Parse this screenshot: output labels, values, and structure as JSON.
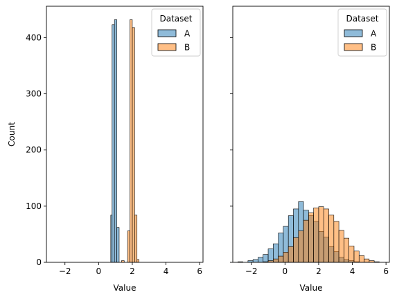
{
  "chart_data": [
    {
      "type": "bar",
      "panel": "left",
      "xlabel": "Value",
      "ylabel": "Count",
      "xlim": [
        -3.1,
        6.2
      ],
      "ylim": [
        0,
        456
      ],
      "xticks": [
        -2,
        0,
        2,
        4,
        6
      ],
      "yticks": [
        0,
        100,
        200,
        300,
        400
      ],
      "legend": {
        "title": "Dataset",
        "placement": "top-right",
        "entries": [
          "A",
          "B"
        ]
      },
      "series": [
        {
          "name": "A",
          "color": "#1f77b4",
          "bins": [
            [
              0.72,
              0.8,
              84
            ],
            [
              0.8,
              0.94,
              423
            ],
            [
              0.94,
              1.08,
              432
            ],
            [
              1.08,
              1.22,
              62
            ]
          ]
        },
        {
          "name": "B",
          "color": "#ff7f0e",
          "bins": [
            [
              1.36,
              1.52,
              3
            ],
            [
              1.72,
              1.86,
              56
            ],
            [
              1.86,
              2.0,
              432
            ],
            [
              2.0,
              2.14,
              418
            ],
            [
              2.14,
              2.28,
              84
            ],
            [
              2.28,
              2.4,
              5
            ]
          ]
        }
      ]
    },
    {
      "type": "bar",
      "panel": "right",
      "xlabel": "Value",
      "ylabel": "",
      "xlim": [
        -3.1,
        6.2
      ],
      "ylim": [
        0,
        456
      ],
      "xticks": [
        -2,
        0,
        2,
        4,
        6
      ],
      "yticks": [
        0,
        100,
        200,
        300,
        400
      ],
      "legend": {
        "title": "Dataset",
        "placement": "top-right",
        "entries": [
          "A",
          "B"
        ]
      },
      "bin_start": -2.8,
      "bin_width": 0.3,
      "series": [
        {
          "name": "A",
          "color": "#1f77b4",
          "counts": [
            1,
            0,
            3,
            5,
            9,
            14,
            24,
            33,
            52,
            64,
            83,
            95,
            108,
            93,
            83,
            73,
            55,
            45,
            28,
            19,
            9,
            5,
            3,
            1,
            0,
            0,
            0,
            0
          ]
        },
        {
          "name": "B",
          "color": "#ff7f0e",
          "counts": [
            0,
            0,
            0,
            0,
            0,
            1,
            3,
            6,
            11,
            18,
            28,
            44,
            56,
            75,
            88,
            97,
            99,
            95,
            84,
            73,
            57,
            43,
            29,
            20,
            12,
            6,
            3,
            1
          ]
        }
      ]
    }
  ]
}
